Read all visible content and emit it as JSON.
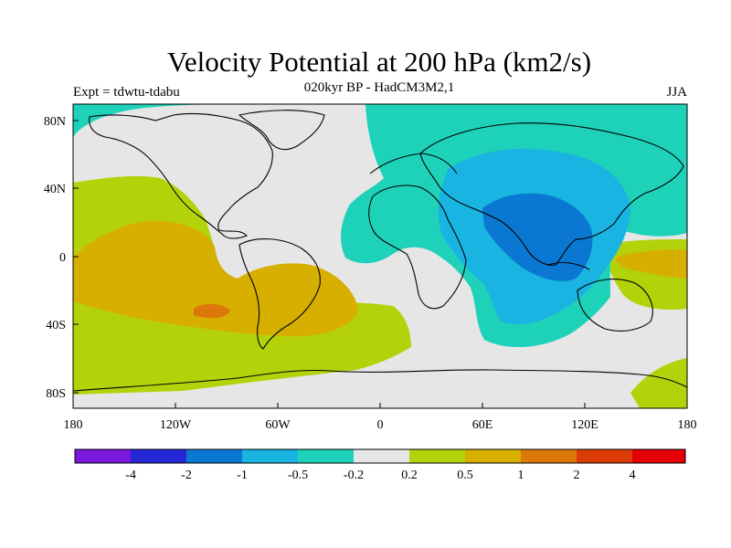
{
  "title": "Velocity Potential at 200 hPa (km2/s)",
  "subtitle": "020kyr BP - HadCM3M2,1",
  "experiment": "Expt = tdwtu-tdabu",
  "season": "JJA",
  "lat_ticks": [
    "80N",
    "40N",
    "0",
    "40S",
    "80S"
  ],
  "lon_ticks": [
    "180",
    "120W",
    "60W",
    "0",
    "60E",
    "120E",
    "180"
  ],
  "colorbar": {
    "labels": [
      "-4",
      "-2",
      "-1",
      "-0.5",
      "-0.2",
      "0.2",
      "0.5",
      "1",
      "2",
      "4"
    ],
    "colors": [
      "#7a19dc",
      "#2528d7",
      "#0a78d2",
      "#19b4e1",
      "#1ed2b9",
      "#e6e6e6",
      "#b4d20a",
      "#d7af00",
      "#dc780a",
      "#dc3c08",
      "#e60008"
    ]
  },
  "fill_colors": {
    "neutral": "#e6e6e6",
    "weak_neg": "#1ed2b9",
    "mid_neg": "#19b4e1",
    "strong_neg": "#0a78d2",
    "weak_pos": "#b4d20a",
    "mid_pos": "#d7af00",
    "strong_pos": "#dc780a"
  }
}
